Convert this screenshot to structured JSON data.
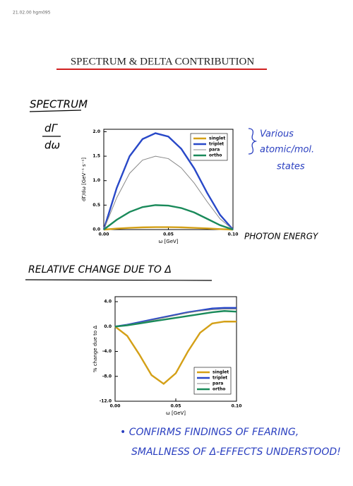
{
  "header": {
    "stamp": "21.02.00 hgm095",
    "title": "SPECTRUM & DELTA CONTRIBUTION"
  },
  "notes": {
    "spectrum": "SPECTRUM",
    "derivative_top": "dΓ",
    "derivative_bottom": "dω",
    "states_1": "Various",
    "states_2": "atomic/mol.",
    "states_3": "states",
    "photon_energy": "PHOTON ENERGY",
    "relative_change": "RELATIVE CHANGE DUE TO Δ",
    "conclusion_1": "• CONFIRMS FINDINGS OF FEARING,",
    "conclusion_2": "SMALLNESS OF Δ-EFFECTS UNDERSTOOD!"
  },
  "chart_data": [
    {
      "type": "line",
      "x_label": "ω [GeV]",
      "y_label": "dΓ/dω [GeV⁻¹ s⁻¹]",
      "x": [
        0,
        0.01,
        0.02,
        0.03,
        0.04,
        0.05,
        0.06,
        0.07,
        0.08,
        0.09,
        0.1
      ],
      "xlim": [
        0,
        0.1
      ],
      "ylim": [
        0,
        2.05
      ],
      "xticks": [
        {
          "value": 0,
          "label": "0.00"
        },
        {
          "value": 0.05,
          "label": "0.05"
        },
        {
          "value": 0.1,
          "label": "0.10"
        }
      ],
      "yticks": [
        {
          "value": 0,
          "label": "0.0"
        },
        0.5,
        {
          "value": 1,
          "label": "1.0"
        },
        1.5,
        {
          "value": 2,
          "label": "2.0"
        }
      ],
      "legend": "top-right",
      "series": [
        {
          "name": "singlet",
          "color": "#d4a017",
          "values": [
            0,
            0.02,
            0.035,
            0.045,
            0.05,
            0.05,
            0.045,
            0.035,
            0.025,
            0.01,
            0
          ]
        },
        {
          "name": "triplet",
          "color": "#2848c8",
          "values": [
            0,
            0.85,
            1.5,
            1.85,
            1.97,
            1.9,
            1.65,
            1.25,
            0.75,
            0.3,
            0
          ]
        },
        {
          "name": "para",
          "color": "#888888",
          "values": [
            0,
            0.65,
            1.15,
            1.42,
            1.5,
            1.45,
            1.26,
            0.95,
            0.57,
            0.22,
            0
          ]
        },
        {
          "name": "ortho",
          "color": "#1a8a5a",
          "values": [
            0,
            0.2,
            0.36,
            0.46,
            0.5,
            0.49,
            0.44,
            0.35,
            0.22,
            0.09,
            0
          ]
        }
      ]
    },
    {
      "type": "line",
      "x_label": "ω [GeV]",
      "y_label": "% change due to Δ",
      "x": [
        0,
        0.01,
        0.02,
        0.03,
        0.04,
        0.05,
        0.06,
        0.07,
        0.08,
        0.09,
        0.1
      ],
      "xlim": [
        0,
        0.1
      ],
      "ylim": [
        -12,
        4.8
      ],
      "xticks": [
        {
          "value": 0,
          "label": "0.00"
        },
        {
          "value": 0.05,
          "label": "0.05"
        },
        {
          "value": 0.1,
          "label": "0.10"
        }
      ],
      "yticks": [
        {
          "value": -12,
          "label": "-12.0"
        },
        {
          "value": -8,
          "label": "-8.0"
        },
        {
          "value": -4,
          "label": "-4.0"
        },
        {
          "value": 0,
          "label": "0.0"
        },
        {
          "value": 4,
          "label": "4.0"
        }
      ],
      "legend": "bottom-right",
      "series": [
        {
          "name": "singlet",
          "color": "#d4a017",
          "values": [
            0,
            -1.5,
            -4.5,
            -7.8,
            -9.2,
            -7.5,
            -4,
            -1,
            0.5,
            0.8,
            0.8
          ]
        },
        {
          "name": "triplet",
          "color": "#2848c8",
          "values": [
            0,
            0.3,
            0.7,
            1.1,
            1.5,
            1.9,
            2.3,
            2.6,
            2.9,
            3.0,
            3.0
          ]
        },
        {
          "name": "para",
          "color": "#888888",
          "values": [
            0,
            0.3,
            0.6,
            1.0,
            1.4,
            1.8,
            2.2,
            2.5,
            2.7,
            2.8,
            2.8
          ]
        },
        {
          "name": "ortho",
          "color": "#1a8a5a",
          "values": [
            0,
            0.2,
            0.5,
            0.8,
            1.1,
            1.4,
            1.7,
            2.0,
            2.3,
            2.5,
            2.4
          ]
        }
      ]
    }
  ]
}
